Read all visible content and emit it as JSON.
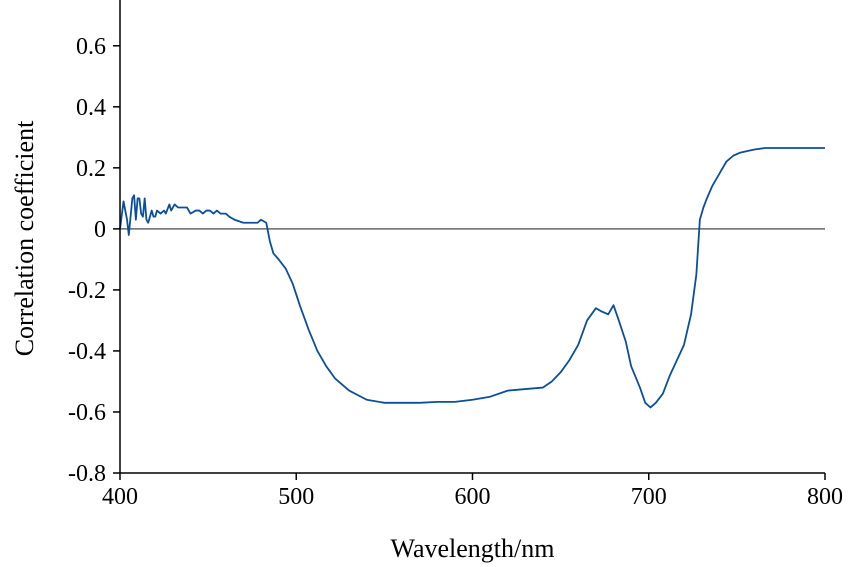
{
  "chart_data": {
    "type": "line",
    "title": "",
    "xlabel": "Wavelength/nm",
    "ylabel": "Correlation coefficient",
    "xlim": [
      400,
      800
    ],
    "ylim": [
      -0.8,
      0.75
    ],
    "x_ticks": [
      "400",
      "500",
      "600",
      "700",
      "800"
    ],
    "y_ticks": [
      "-0.8",
      "-0.6",
      "-0.4",
      "-0.2",
      "0",
      "0.2",
      "0.4",
      "0.6"
    ],
    "grid": false,
    "reference_line": {
      "y": 0,
      "color": "#666666"
    },
    "series": [
      {
        "color": "#0b4f9c",
        "points": [
          [
            400,
            0.0
          ],
          [
            402,
            0.09
          ],
          [
            404,
            0.03
          ],
          [
            405,
            -0.02
          ],
          [
            407,
            0.1
          ],
          [
            408,
            0.11
          ],
          [
            409,
            0.03
          ],
          [
            410,
            0.1
          ],
          [
            411,
            0.1
          ],
          [
            412,
            0.05
          ],
          [
            413,
            0.04
          ],
          [
            414,
            0.1
          ],
          [
            415,
            0.03
          ],
          [
            416,
            0.02
          ],
          [
            418,
            0.06
          ],
          [
            419,
            0.04
          ],
          [
            420,
            0.04
          ],
          [
            421,
            0.06
          ],
          [
            423,
            0.05
          ],
          [
            425,
            0.06
          ],
          [
            426,
            0.05
          ],
          [
            428,
            0.08
          ],
          [
            429,
            0.06
          ],
          [
            431,
            0.08
          ],
          [
            433,
            0.07
          ],
          [
            438,
            0.07
          ],
          [
            440,
            0.05
          ],
          [
            443,
            0.06
          ],
          [
            445,
            0.06
          ],
          [
            447,
            0.05
          ],
          [
            449,
            0.06
          ],
          [
            451,
            0.06
          ],
          [
            453,
            0.05
          ],
          [
            455,
            0.06
          ],
          [
            457,
            0.05
          ],
          [
            460,
            0.05
          ],
          [
            462,
            0.04
          ],
          [
            465,
            0.03
          ],
          [
            470,
            0.02
          ],
          [
            478,
            0.02
          ],
          [
            480,
            0.03
          ],
          [
            483,
            0.02
          ],
          [
            485,
            -0.04
          ],
          [
            487,
            -0.08
          ],
          [
            490,
            -0.1
          ],
          [
            494,
            -0.13
          ],
          [
            498,
            -0.18
          ],
          [
            502,
            -0.25
          ],
          [
            507,
            -0.33
          ],
          [
            512,
            -0.4
          ],
          [
            517,
            -0.45
          ],
          [
            522,
            -0.49
          ],
          [
            530,
            -0.53
          ],
          [
            540,
            -0.56
          ],
          [
            550,
            -0.57
          ],
          [
            560,
            -0.57
          ],
          [
            570,
            -0.57
          ],
          [
            580,
            -0.567
          ],
          [
            590,
            -0.567
          ],
          [
            600,
            -0.56
          ],
          [
            610,
            -0.55
          ],
          [
            620,
            -0.53
          ],
          [
            630,
            -0.525
          ],
          [
            640,
            -0.52
          ],
          [
            645,
            -0.5
          ],
          [
            650,
            -0.47
          ],
          [
            655,
            -0.43
          ],
          [
            660,
            -0.38
          ],
          [
            665,
            -0.3
          ],
          [
            670,
            -0.26
          ],
          [
            673,
            -0.27
          ],
          [
            677,
            -0.28
          ],
          [
            680,
            -0.25
          ],
          [
            683,
            -0.3
          ],
          [
            687,
            -0.37
          ],
          [
            690,
            -0.45
          ],
          [
            695,
            -0.52
          ],
          [
            698,
            -0.57
          ],
          [
            701,
            -0.585
          ],
          [
            704,
            -0.57
          ],
          [
            708,
            -0.54
          ],
          [
            712,
            -0.48
          ],
          [
            716,
            -0.43
          ],
          [
            720,
            -0.38
          ],
          [
            724,
            -0.28
          ],
          [
            727,
            -0.15
          ],
          [
            729,
            0.03
          ],
          [
            731,
            0.07
          ],
          [
            733,
            0.1
          ],
          [
            736,
            0.14
          ],
          [
            740,
            0.18
          ],
          [
            744,
            0.22
          ],
          [
            748,
            0.24
          ],
          [
            752,
            0.25
          ],
          [
            756,
            0.255
          ],
          [
            760,
            0.26
          ],
          [
            766,
            0.265
          ],
          [
            775,
            0.265
          ],
          [
            785,
            0.265
          ],
          [
            800,
            0.265
          ]
        ]
      }
    ]
  }
}
